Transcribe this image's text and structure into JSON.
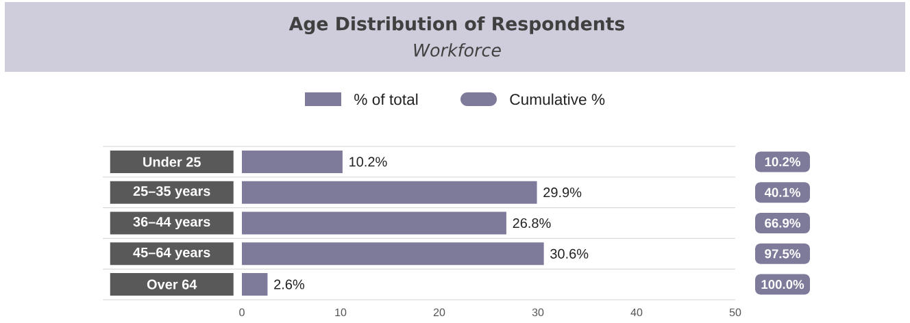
{
  "chart_data": [
    {
      "type": "bar",
      "orientation": "horizontal",
      "title": "Age Distribution of Respondents",
      "subtitle": "Workforce",
      "categories": [
        "Under 25",
        "25–35 years",
        "36–44 years",
        "45–64 years",
        "Over 64"
      ],
      "series": [
        {
          "name": "% of total",
          "type": "bar",
          "color": "#7d7a9a",
          "values": [
            10.2,
            29.9,
            26.8,
            30.6,
            2.6
          ],
          "value_labels": [
            "10.2%",
            "29.9%",
            "26.8%",
            "30.6%",
            "2.6%"
          ]
        }
      ],
      "xlim": [
        0,
        50
      ],
      "xticks": [
        0,
        10,
        20,
        30,
        40,
        50
      ],
      "legend": "top"
    },
    {
      "type": "other",
      "series": [
        {
          "name": "Cumulative %",
          "color": "#7d7a9a",
          "values": [
            10.2,
            40.1,
            66.9,
            97.5,
            100.0
          ],
          "value_labels": [
            "10.2%",
            "40.1%",
            "66.9%",
            "97.5%",
            "100.0%"
          ]
        }
      ]
    }
  ]
}
